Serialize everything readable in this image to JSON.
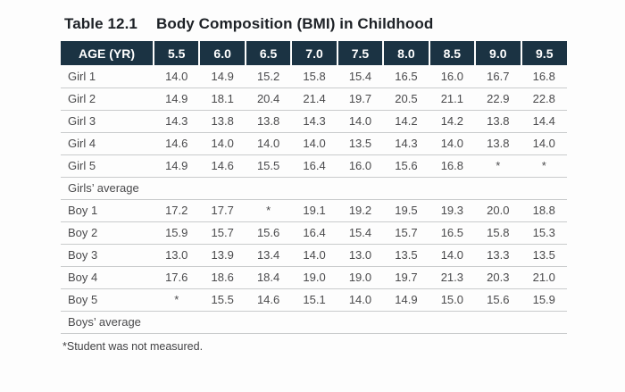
{
  "title": {
    "number": "Table 12.1",
    "text": "Body Composition (BMI) in Childhood"
  },
  "table": {
    "columns": [
      "AGE (YR)",
      "5.5",
      "6.0",
      "6.5",
      "7.0",
      "7.5",
      "8.0",
      "8.5",
      "9.0",
      "9.5"
    ],
    "rows": [
      {
        "label": "Girl 1",
        "values": [
          "14.0",
          "14.9",
          "15.2",
          "15.8",
          "15.4",
          "16.5",
          "16.0",
          "16.7",
          "16.8"
        ]
      },
      {
        "label": "Girl 2",
        "values": [
          "14.9",
          "18.1",
          "20.4",
          "21.4",
          "19.7",
          "20.5",
          "21.1",
          "22.9",
          "22.8"
        ]
      },
      {
        "label": "Girl 3",
        "values": [
          "14.3",
          "13.8",
          "13.8",
          "14.3",
          "14.0",
          "14.2",
          "14.2",
          "13.8",
          "14.4"
        ]
      },
      {
        "label": "Girl 4",
        "values": [
          "14.6",
          "14.0",
          "14.0",
          "14.0",
          "13.5",
          "14.3",
          "14.0",
          "13.8",
          "14.0"
        ]
      },
      {
        "label": "Girl 5",
        "values": [
          "14.9",
          "14.6",
          "15.5",
          "16.4",
          "16.0",
          "15.6",
          "16.8",
          "*",
          "*"
        ]
      },
      {
        "label": "Girls’ average",
        "values": [
          "",
          "",
          "",
          "",
          "",
          "",
          "",
          "",
          ""
        ]
      },
      {
        "label": "Boy 1",
        "values": [
          "17.2",
          "17.7",
          "*",
          "19.1",
          "19.2",
          "19.5",
          "19.3",
          "20.0",
          "18.8"
        ]
      },
      {
        "label": "Boy 2",
        "values": [
          "15.9",
          "15.7",
          "15.6",
          "16.4",
          "15.4",
          "15.7",
          "16.5",
          "15.8",
          "15.3"
        ]
      },
      {
        "label": "Boy 3",
        "values": [
          "13.0",
          "13.9",
          "13.4",
          "14.0",
          "13.0",
          "13.5",
          "14.0",
          "13.3",
          "13.5"
        ]
      },
      {
        "label": "Boy 4",
        "values": [
          "17.6",
          "18.6",
          "18.4",
          "19.0",
          "19.0",
          "19.7",
          "21.3",
          "20.3",
          "21.0"
        ]
      },
      {
        "label": "Boy 5",
        "values": [
          "*",
          "15.5",
          "14.6",
          "15.1",
          "14.0",
          "14.9",
          "15.0",
          "15.6",
          "15.9"
        ]
      },
      {
        "label": "Boys’ average",
        "values": [
          "",
          "",
          "",
          "",
          "",
          "",
          "",
          "",
          ""
        ]
      }
    ]
  },
  "footnote": "*Student was not measured.",
  "colors": {
    "header_bg": "#1b3343",
    "header_text": "#ffffff",
    "row_divider": "#c9cbcc",
    "body_text": "#4a4a4c",
    "title_text": "#1d2126",
    "page_bg": "#fdfdfd"
  }
}
